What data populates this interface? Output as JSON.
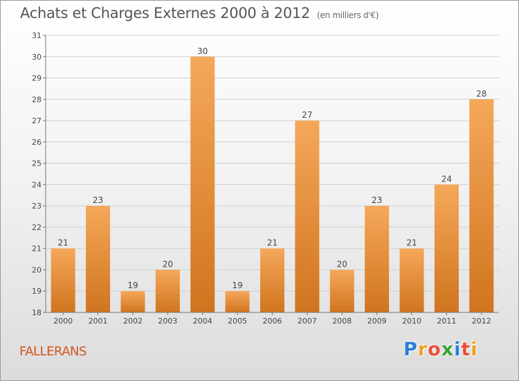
{
  "title": "Achats et Charges Externes 2000 à 2012",
  "subtitle": "(en milliers d'€)",
  "place": "FALLERANS",
  "logo": {
    "text": "Proxiti",
    "letters": [
      {
        "ch": "P",
        "color": "#2a7fd4"
      },
      {
        "ch": "r",
        "color": "#f0a020"
      },
      {
        "ch": "o",
        "color": "#e8503a"
      },
      {
        "ch": "x",
        "color": "#3aa23a"
      },
      {
        "ch": "i",
        "color": "#2a7fd4"
      },
      {
        "ch": "t",
        "color": "#e8503a"
      },
      {
        "ch": "i",
        "color": "#f0a020"
      }
    ]
  },
  "colors": {
    "bar_top": "#f5a85a",
    "bar_bottom": "#d0741e",
    "place": "#d2541e",
    "grid": "#cfcfcf",
    "text": "#444444"
  },
  "chart_data": {
    "type": "bar",
    "categories": [
      "2000",
      "2001",
      "2002",
      "2003",
      "2004",
      "2005",
      "2006",
      "2007",
      "2008",
      "2009",
      "2010",
      "2011",
      "2012"
    ],
    "values": [
      21,
      23,
      19,
      20,
      30,
      19,
      21,
      27,
      20,
      23,
      21,
      24,
      28
    ],
    "ylim": [
      18,
      31
    ],
    "yticks": [
      18,
      19,
      20,
      21,
      22,
      23,
      24,
      25,
      26,
      27,
      28,
      29,
      30,
      31
    ],
    "grid": true,
    "data_labels": true
  }
}
